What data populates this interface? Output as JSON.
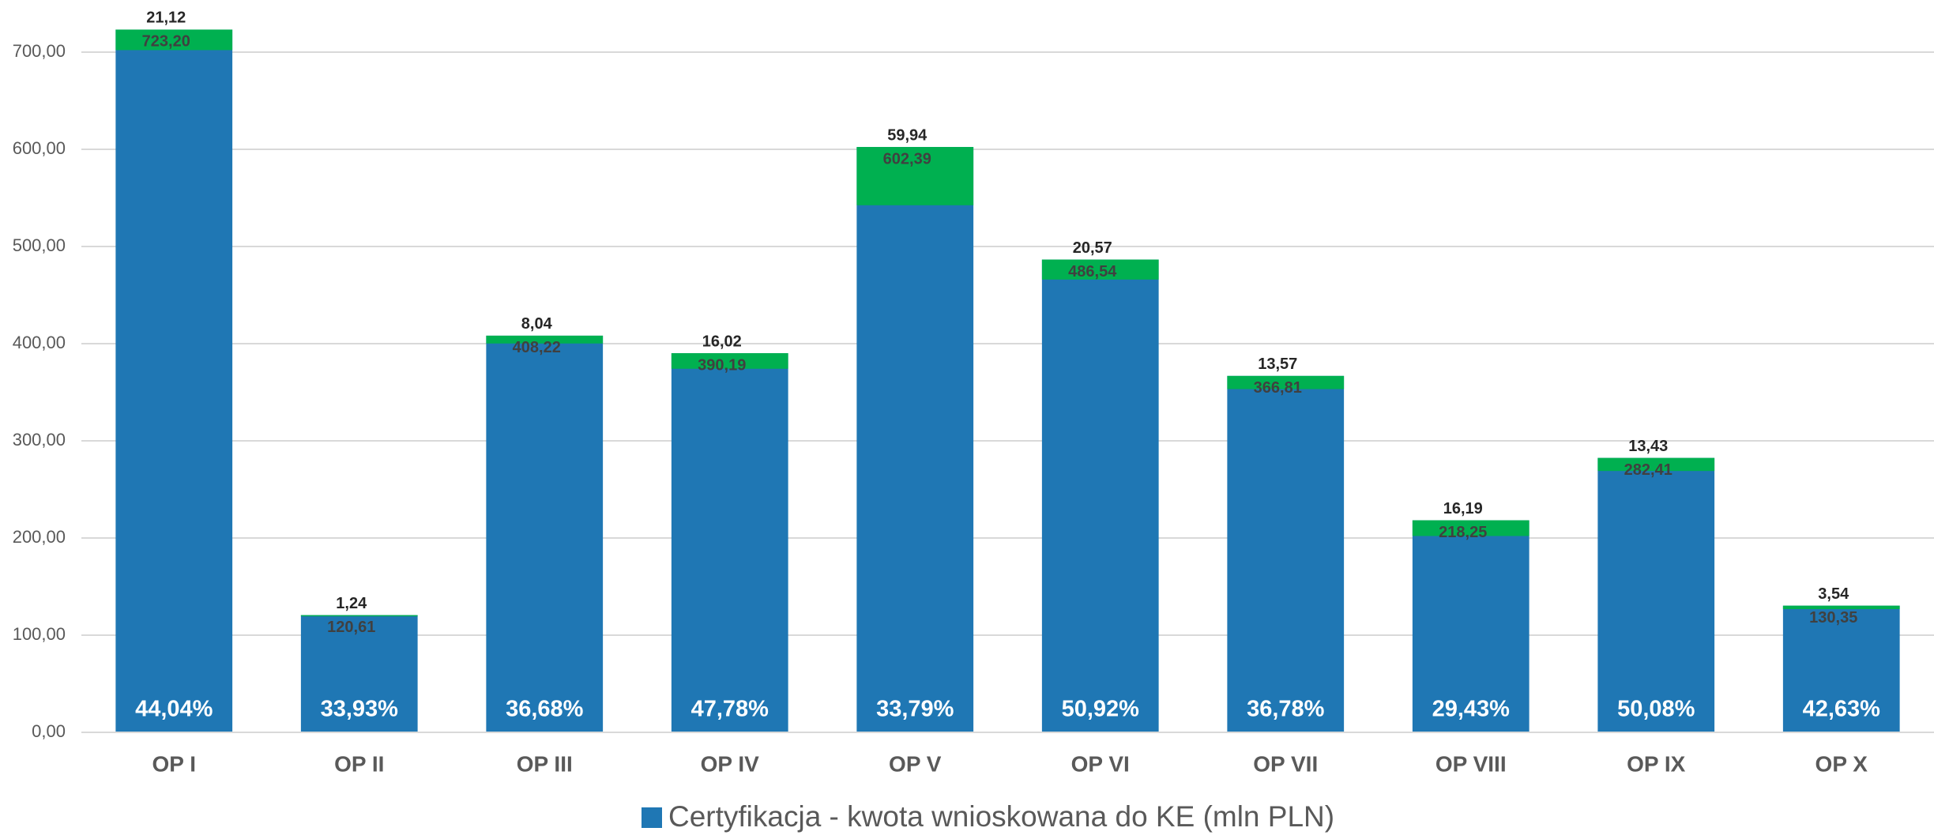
{
  "chart_data": {
    "type": "bar",
    "categories": [
      "OP I",
      "OP II",
      "OP III",
      "OP IV",
      "OP V",
      "OP VI",
      "OP VII",
      "OP VIII",
      "OP IX",
      "OP X"
    ],
    "series": [
      {
        "name": "Certyfikacja - kwota wnioskowana do KE (mln PLN)",
        "color": "#1f77b4",
        "values": [
          723.2,
          120.61,
          408.22,
          390.19,
          602.39,
          486.54,
          366.81,
          218.25,
          282.41,
          130.35
        ],
        "value_labels": [
          "723,20",
          "120,61",
          "408,22",
          "390,19",
          "602,39",
          "486,54",
          "366,81",
          "218,25",
          "282,41",
          "130,35"
        ]
      }
    ],
    "overlay": {
      "color": "#00b050",
      "values": [
        21.12,
        1.24,
        8.04,
        16.02,
        59.94,
        20.57,
        13.57,
        16.19,
        13.43,
        3.54
      ],
      "value_labels": [
        "21,12",
        "1,24",
        "8,04",
        "16,02",
        "59,94",
        "20,57",
        "13,57",
        "16,19",
        "13,43",
        "3,54"
      ]
    },
    "bar_bottom_labels": [
      "44,04%",
      "33,93%",
      "36,68%",
      "47,78%",
      "33,79%",
      "50,92%",
      "36,78%",
      "29,43%",
      "50,08%",
      "42,63%"
    ],
    "ylim": [
      0,
      750
    ],
    "yticks": [
      {
        "value": 0,
        "label": "0,00"
      },
      {
        "value": 100,
        "label": "100,00"
      },
      {
        "value": 200,
        "label": "200,00"
      },
      {
        "value": 300,
        "label": "300,00"
      },
      {
        "value": 400,
        "label": "400,00"
      },
      {
        "value": 500,
        "label": "500,00"
      },
      {
        "value": 600,
        "label": "600,00"
      },
      {
        "value": 700,
        "label": "700,00"
      }
    ],
    "grid": true,
    "legend": "bottom"
  }
}
